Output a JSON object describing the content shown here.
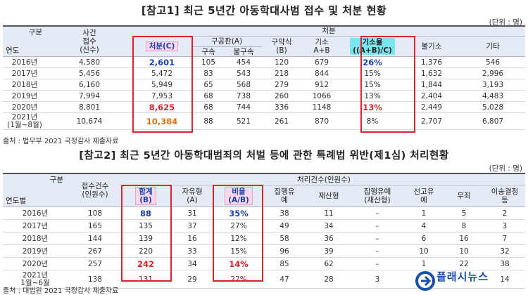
{
  "table1": {
    "title": "[참고1] 최근 5년간 아동학대사범 접수 및 처분 현황",
    "unit": "(단위 : 명)",
    "source": "출처 : 법무부 2021 국정감사 제출자료",
    "corner_top": "구분",
    "corner_bottom": "연도",
    "col_cases": "사건\n접수\n(신수)",
    "group_disposal": "처분",
    "col_disposal": "처분(C)",
    "group_indict": "구공판(A)",
    "col_detained": "구속",
    "col_not_detained": "불구속",
    "col_summary": "구약식\n(B)",
    "col_indict": "기소\nA+B",
    "col_rate": "기소율\n((A+B)/C)",
    "col_non_indict": "불기소",
    "col_other": "기타",
    "rows": [
      {
        "year": "2016년",
        "cases": "4,580",
        "disposal": "2,601",
        "detained": "105",
        "not_detained": "454",
        "summary": "120",
        "indict": "679",
        "rate": "26%",
        "non_indict": "1,376",
        "other": "546"
      },
      {
        "year": "2017년",
        "cases": "5,456",
        "disposal": "5,472",
        "detained": "83",
        "not_detained": "543",
        "summary": "218",
        "indict": "844",
        "rate": "15%",
        "non_indict": "1,632",
        "other": "2,996"
      },
      {
        "year": "2018년",
        "cases": "6,160",
        "disposal": "5,949",
        "detained": "65",
        "not_detained": "568",
        "summary": "279",
        "indict": "912",
        "rate": "15%",
        "non_indict": "1,844",
        "other": "3,193"
      },
      {
        "year": "2019년",
        "cases": "7,994",
        "disposal": "7,953",
        "detained": "68",
        "not_detained": "738",
        "summary": "260",
        "indict": "1066",
        "rate": "13%",
        "non_indict": "2,404",
        "other": "4,483"
      },
      {
        "year": "2020년",
        "cases": "8,801",
        "disposal": "8,625",
        "detained": "68",
        "not_detained": "744",
        "summary": "336",
        "indict": "1148",
        "rate": "13%",
        "non_indict": "2,449",
        "other": "5,028"
      },
      {
        "year": "2021년\n(1월~8월)",
        "cases": "10,674",
        "disposal": "10,384",
        "detained": "88",
        "not_detained": "521",
        "summary": "261",
        "indict": "870",
        "rate": "8%",
        "non_indict": "2,707",
        "other": "6,807"
      }
    ]
  },
  "table2": {
    "title": "[참고2] 최근 5년간 아동학대범죄의 처벌 등에 관한 특례법 위반(제1심) 처리현황",
    "unit": "(단위 : 명)",
    "source": "출처 : 대법원 2021 국정감사 제출자료",
    "corner_top": "구분",
    "corner_bottom": "연도별",
    "col_received": "접수건수\n(인원수)",
    "group_processed": "처리건수(인원수)",
    "col_total": "합계\n(B)",
    "col_prison": "자유형\n(A)",
    "col_ratio": "비율\n(A/B)",
    "col_suspended": "집행유\n예",
    "col_property": "재산형",
    "col_susp_property": "집행유예\n(재산형)",
    "col_sentence_susp": "선고유\n예",
    "col_acquittal": "무죄",
    "col_transfer": "이송결정\n등",
    "rows": [
      {
        "year": "2016년",
        "received": "108",
        "total": "88",
        "prison": "31",
        "ratio": "35%",
        "suspended": "38",
        "property": "11",
        "susp_property": "–",
        "sentence_susp": "1",
        "acquittal": "5",
        "transfer": "2"
      },
      {
        "year": "2017년",
        "received": "165",
        "total": "135",
        "prison": "37",
        "ratio": "27%",
        "suspended": "49",
        "property": "34",
        "susp_property": "–",
        "sentence_susp": "4",
        "acquittal": "8",
        "transfer": "3"
      },
      {
        "year": "2018년",
        "received": "144",
        "total": "139",
        "prison": "16",
        "ratio": "12%",
        "suspended": "58",
        "property": "36",
        "susp_property": "–",
        "sentence_susp": "6",
        "acquittal": "16",
        "transfer": "7"
      },
      {
        "year": "2019년",
        "received": "267",
        "total": "220",
        "prison": "33",
        "ratio": "15%",
        "suspended": "96",
        "property": "39",
        "susp_property": "–",
        "sentence_susp": "10",
        "acquittal": "10",
        "transfer": "32"
      },
      {
        "year": "2020년",
        "received": "257",
        "total": "242",
        "prison": "34",
        "ratio": "14%",
        "suspended": "85",
        "property": "62",
        "susp_property": "–",
        "sentence_susp": "1",
        "acquittal": "22",
        "transfer": "38"
      },
      {
        "year": "2021년\n1월~6월",
        "received": "138",
        "total": "131",
        "prison": "29",
        "ratio": "22%",
        "suspended": "47",
        "property": "28",
        "susp_property": "3",
        "sentence_susp": "",
        "acquittal": "",
        "transfer": "14"
      }
    ]
  },
  "logo": {
    "text": "플래시뉴스"
  }
}
